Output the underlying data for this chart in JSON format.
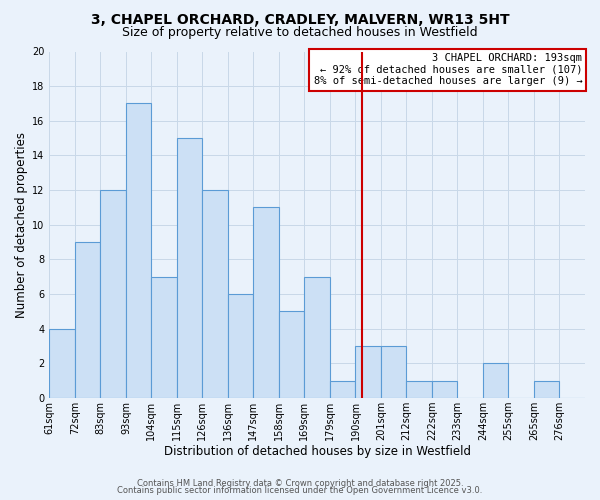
{
  "title_line1": "3, CHAPEL ORCHARD, CRADLEY, MALVERN, WR13 5HT",
  "title_line2": "Size of property relative to detached houses in Westfield",
  "xlabel": "Distribution of detached houses by size in Westfield",
  "ylabel": "Number of detached properties",
  "bin_labels": [
    "61sqm",
    "72sqm",
    "83sqm",
    "93sqm",
    "104sqm",
    "115sqm",
    "126sqm",
    "136sqm",
    "147sqm",
    "158sqm",
    "169sqm",
    "179sqm",
    "190sqm",
    "201sqm",
    "212sqm",
    "222sqm",
    "233sqm",
    "244sqm",
    "255sqm",
    "265sqm",
    "276sqm"
  ],
  "counts": [
    4,
    9,
    12,
    17,
    7,
    15,
    12,
    6,
    11,
    5,
    7,
    1,
    3,
    3,
    1,
    1,
    0,
    2,
    0,
    1,
    0
  ],
  "bar_color": "#cce0f5",
  "bar_edge_color": "#5b9bd5",
  "reference_line_color": "#cc0000",
  "reference_bin_index": 12,
  "ylim_max": 20,
  "yticks": [
    0,
    2,
    4,
    6,
    8,
    10,
    12,
    14,
    16,
    18,
    20
  ],
  "grid_color": "#c8d8e8",
  "background_color": "#eaf2fb",
  "annotation_text": "3 CHAPEL ORCHARD: 193sqm\n← 92% of detached houses are smaller (107)\n8% of semi-detached houses are larger (9) →",
  "annotation_box_color": "#ffffff",
  "annotation_border_color": "#cc0000",
  "footer_line1": "Contains HM Land Registry data © Crown copyright and database right 2025.",
  "footer_line2": "Contains public sector information licensed under the Open Government Licence v3.0.",
  "title_fontsize": 10,
  "subtitle_fontsize": 9,
  "axis_label_fontsize": 8.5,
  "tick_fontsize": 7,
  "annotation_fontsize": 7.5,
  "footer_fontsize": 6
}
